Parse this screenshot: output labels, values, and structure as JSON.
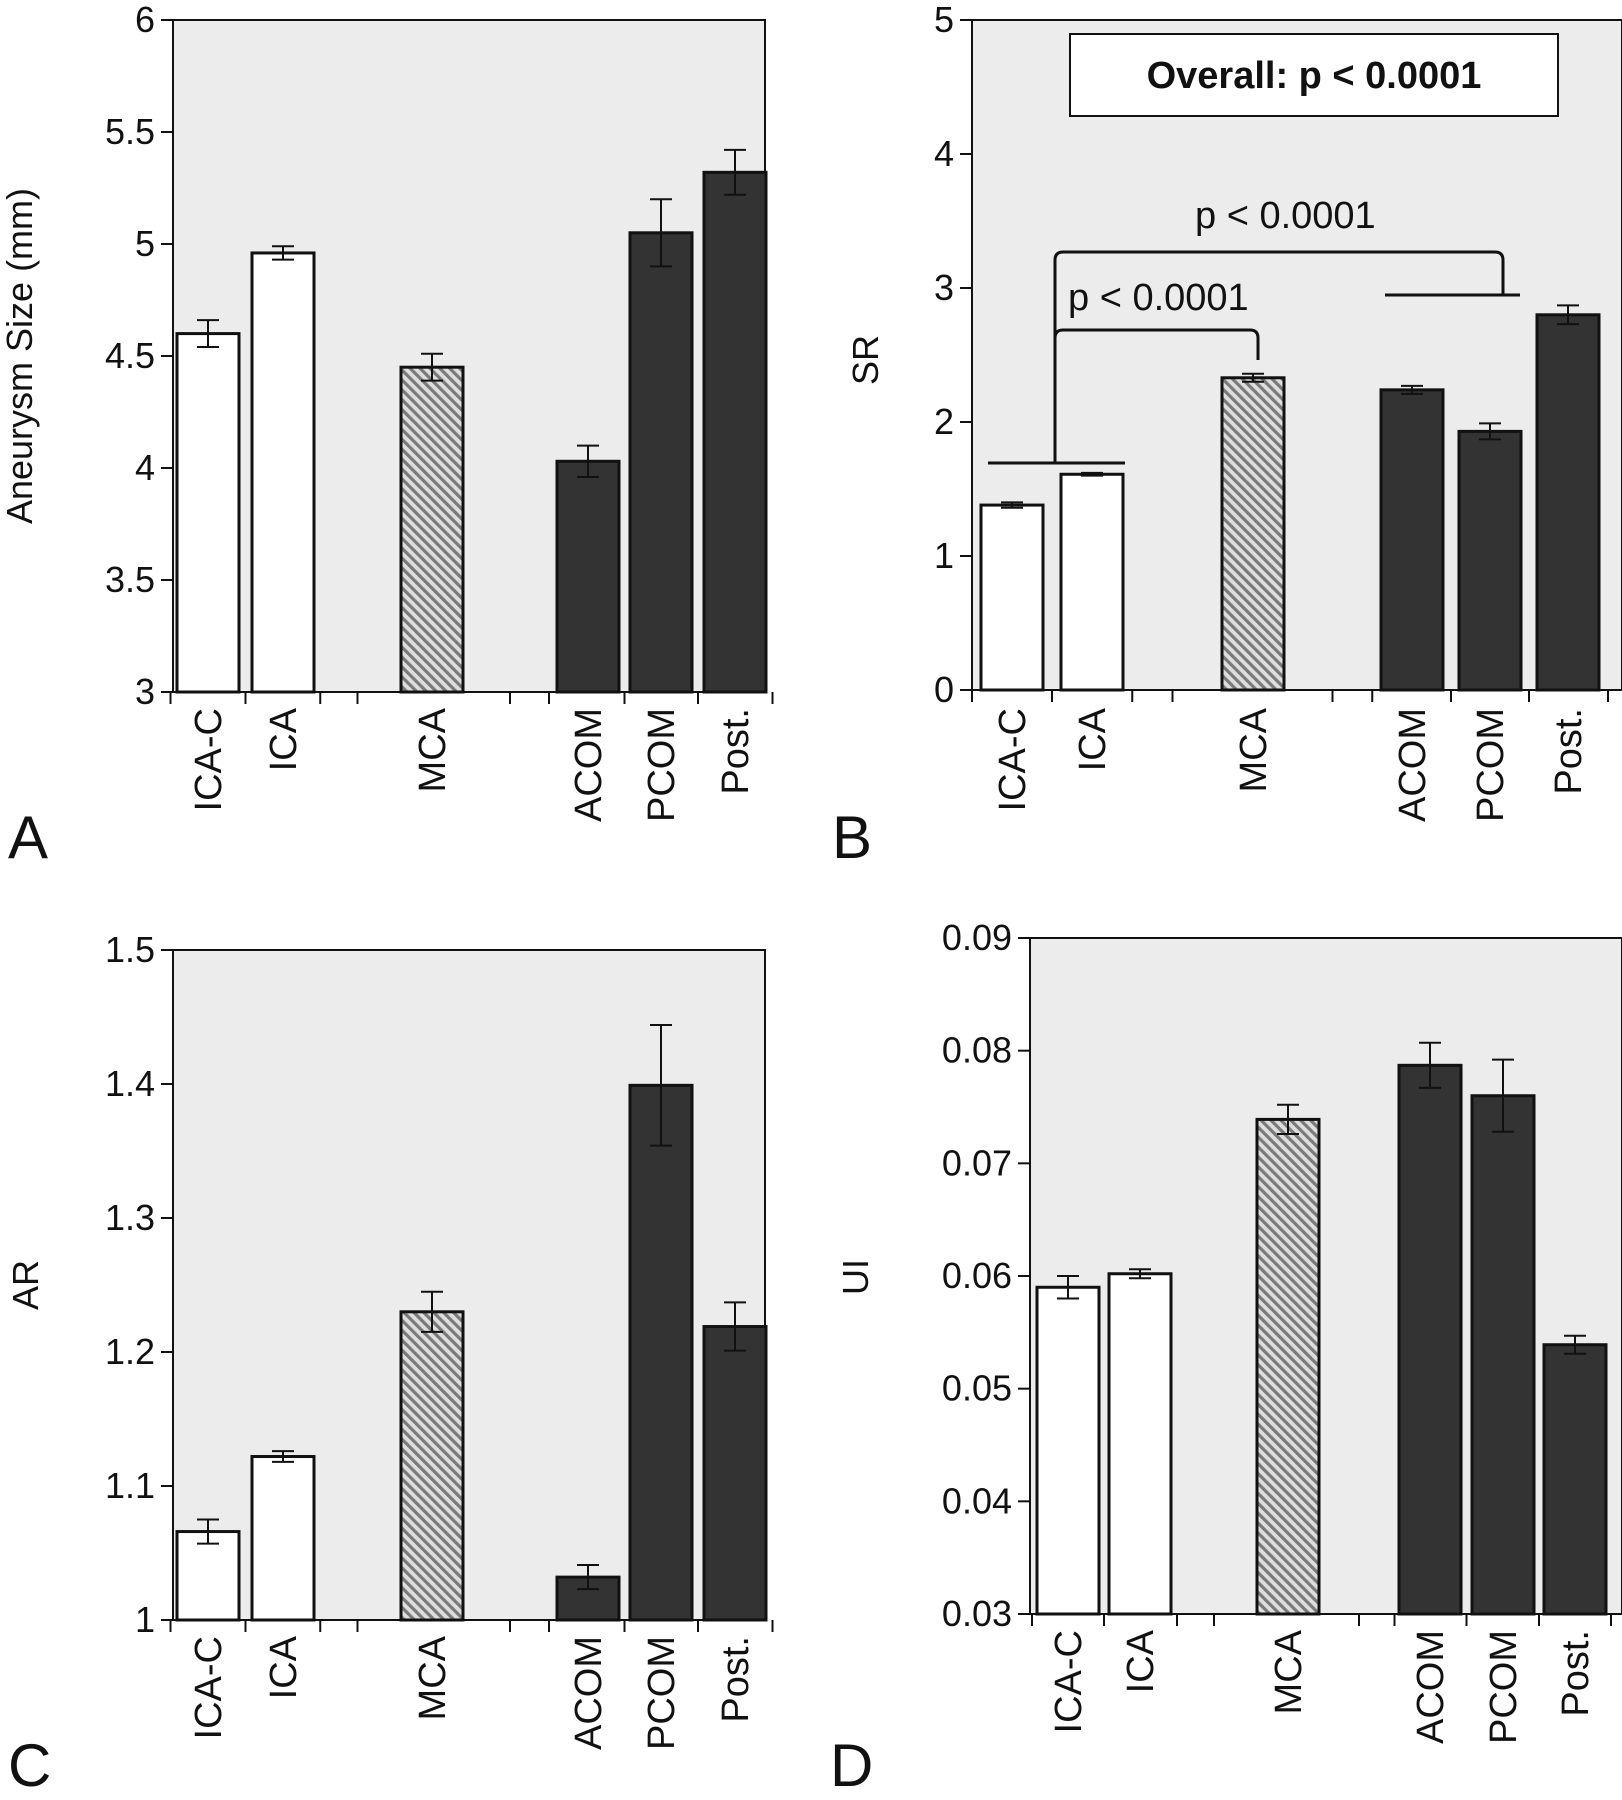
{
  "colors": {
    "plot_bg": "#ececec",
    "white_bar": "#ffffff",
    "dark_bar": "#333333",
    "hatch_stripe": "#7a7a7a",
    "hatch_bg": "#dedede",
    "axis": "#111111"
  },
  "chart_data": [
    {
      "panel": "A",
      "type": "bar",
      "ylabel": "Aneurysm Size (mm)",
      "ylim": [
        3,
        6
      ],
      "yticks": [
        "3",
        "3.5",
        "4",
        "4.5",
        "5",
        "5.5",
        "6"
      ],
      "categories": [
        "ICA-C",
        "ICA",
        "MCA",
        "ACOM",
        "PCOM",
        "Post."
      ],
      "values": [
        4.6,
        4.96,
        4.45,
        4.03,
        5.05,
        5.32
      ],
      "errors": [
        0.06,
        0.03,
        0.06,
        0.07,
        0.15,
        0.1
      ],
      "fills": [
        "white",
        "white",
        "hatch",
        "dark",
        "dark",
        "dark"
      ]
    },
    {
      "panel": "B",
      "type": "bar",
      "ylabel": "SR",
      "ylim": [
        0,
        5
      ],
      "yticks": [
        "0",
        "1",
        "2",
        "3",
        "4",
        "5"
      ],
      "categories": [
        "ICA-C",
        "ICA",
        "MCA",
        "ACOM",
        "PCOM",
        "Post."
      ],
      "values": [
        1.38,
        1.61,
        2.33,
        2.24,
        1.93,
        2.8
      ],
      "errors": [
        0.02,
        0.01,
        0.03,
        0.03,
        0.06,
        0.07
      ],
      "fills": [
        "white",
        "white",
        "hatch",
        "dark",
        "dark",
        "dark"
      ],
      "annotations": {
        "overall": "Overall: p < 0.0001",
        "p_mca": "p < 0.0001",
        "p_posterior": "p < 0.0001"
      }
    },
    {
      "panel": "C",
      "type": "bar",
      "ylabel": "AR",
      "ylim": [
        1,
        1.5
      ],
      "yticks": [
        "1",
        "1.1",
        "1.2",
        "1.3",
        "1.4",
        "1.5"
      ],
      "categories": [
        "ICA-C",
        "ICA",
        "MCA",
        "ACOM",
        "PCOM",
        "Post."
      ],
      "values": [
        1.066,
        1.122,
        1.23,
        1.032,
        1.399,
        1.219
      ],
      "errors": [
        0.009,
        0.004,
        0.015,
        0.009,
        0.045,
        0.018
      ],
      "fills": [
        "white",
        "white",
        "hatch",
        "dark",
        "dark",
        "dark"
      ]
    },
    {
      "panel": "D",
      "type": "bar",
      "ylabel": "UI",
      "ylim": [
        0.03,
        0.09
      ],
      "yticks": [
        "0.03",
        "0.04",
        "0.05",
        "0.06",
        "0.07",
        "0.08",
        "0.09"
      ],
      "categories": [
        "ICA-C",
        "ICA",
        "MCA",
        "ACOM",
        "PCOM",
        "Post."
      ],
      "values": [
        0.059,
        0.0602,
        0.0739,
        0.0787,
        0.076,
        0.0539
      ],
      "errors": [
        0.001,
        0.0004,
        0.0013,
        0.002,
        0.0032,
        0.0008
      ],
      "fills": [
        "white",
        "white",
        "hatch",
        "dark",
        "dark",
        "dark"
      ]
    }
  ]
}
